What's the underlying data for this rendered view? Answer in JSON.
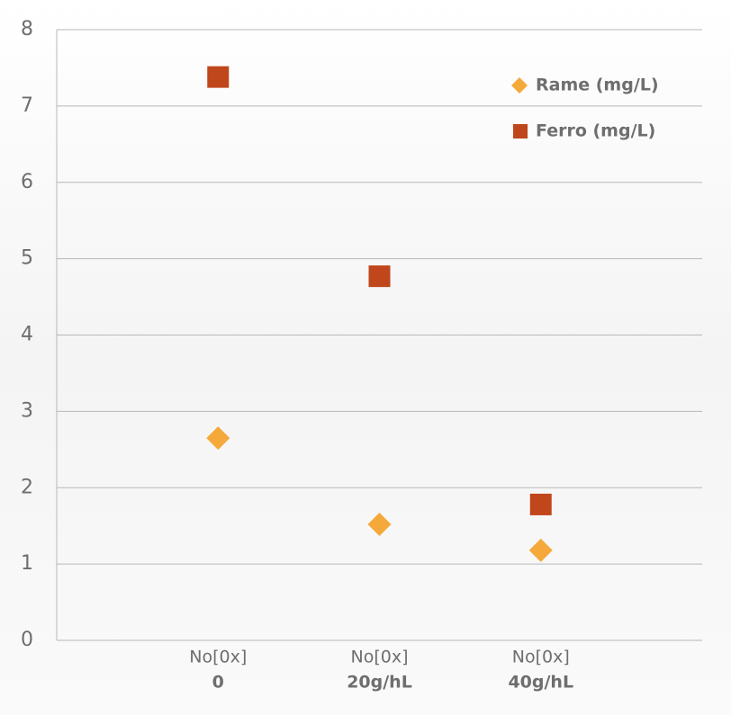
{
  "chart_data": {
    "type": "scatter",
    "categories": [
      [
        "No[0x]",
        "0"
      ],
      [
        "No[0x]",
        "20g/hL"
      ],
      [
        "No[0x]",
        "40g/hL"
      ]
    ],
    "series": [
      {
        "name": "Rame (mg/L)",
        "color": "#f5a93a",
        "marker": "diamond",
        "values": [
          2.65,
          1.52,
          1.18
        ]
      },
      {
        "name": "Ferro (mg/L)",
        "color": "#c0461b",
        "marker": "square",
        "values": [
          7.38,
          4.77,
          1.78
        ]
      }
    ],
    "ylim": [
      0,
      8
    ],
    "yticks": [
      0,
      1,
      2,
      3,
      4,
      5,
      6,
      7,
      8
    ],
    "grid": true,
    "legend": "top-right"
  }
}
